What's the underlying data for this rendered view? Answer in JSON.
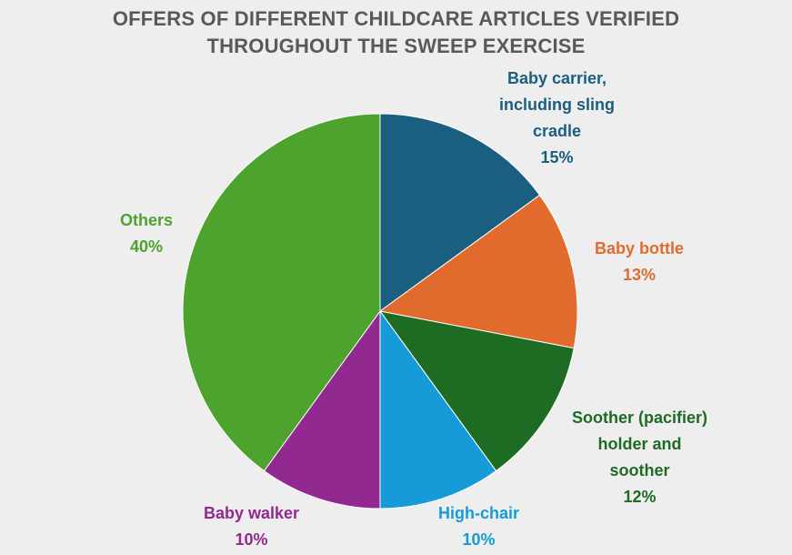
{
  "chart_data": {
    "type": "pie",
    "title_lines": [
      "OFFERS OF DIFFERENT CHILDCARE ARTICLES VERIFIED",
      "THROUGHOUT THE SWEEP EXERCISE"
    ],
    "start_angle_deg": 0,
    "direction": "clockwise",
    "slices": [
      {
        "label_lines": [
          "Baby carrier,",
          "including sling",
          "cradle"
        ],
        "percent_label": "15%",
        "value": 15,
        "color": "#1a5e80"
      },
      {
        "label_lines": [
          "Baby bottle"
        ],
        "percent_label": "13%",
        "value": 13,
        "color": "#e06b2c"
      },
      {
        "label_lines": [
          "Soother (pacifier)",
          "holder and",
          "soother"
        ],
        "percent_label": "12%",
        "value": 12,
        "color": "#1e6b24"
      },
      {
        "label_lines": [
          "High-chair"
        ],
        "percent_label": "10%",
        "value": 10,
        "color": "#169ad8"
      },
      {
        "label_lines": [
          "Baby walker"
        ],
        "percent_label": "10%",
        "value": 10,
        "color": "#922990"
      },
      {
        "label_lines": [
          "Others"
        ],
        "percent_label": "40%",
        "value": 40,
        "color": "#4ea22e"
      }
    ]
  }
}
